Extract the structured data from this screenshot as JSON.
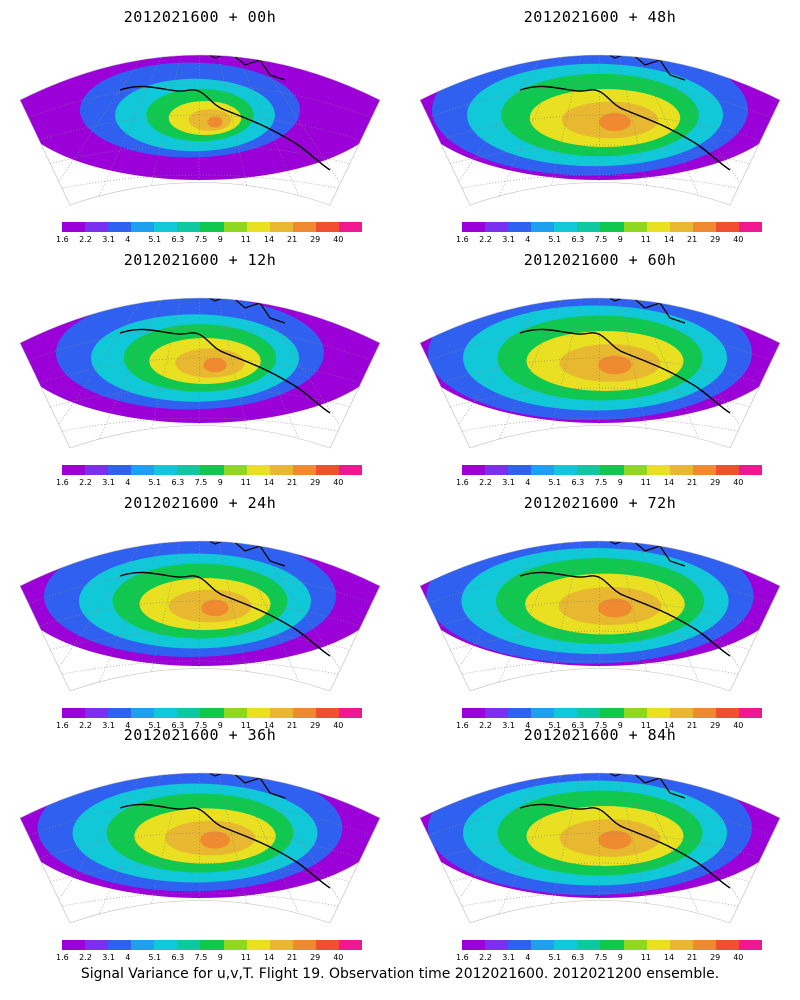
{
  "panels": [
    {
      "title": "2012021600 + 00h",
      "lead_hours": 0,
      "intensity": 0.25
    },
    {
      "title": "2012021600 + 48h",
      "lead_hours": 48,
      "intensity": 0.85
    },
    {
      "title": "2012021600 + 12h",
      "lead_hours": 12,
      "intensity": 0.55
    },
    {
      "title": "2012021600 + 60h",
      "lead_hours": 60,
      "intensity": 0.9
    },
    {
      "title": "2012021600 + 24h",
      "lead_hours": 24,
      "intensity": 0.7
    },
    {
      "title": "2012021600 + 72h",
      "lead_hours": 72,
      "intensity": 0.92
    },
    {
      "title": "2012021600 + 36h",
      "lead_hours": 36,
      "intensity": 0.78
    },
    {
      "title": "2012021600 + 84h",
      "lead_hours": 84,
      "intensity": 0.9
    }
  ],
  "legend": {
    "tick_labels": [
      "1.6",
      "2.2",
      "3.1",
      "4",
      "5.1",
      "6.3",
      "7.5",
      "9",
      "11",
      "14",
      "21",
      "29",
      "40"
    ],
    "colors": [
      "#9b00d8",
      "#7b2ff0",
      "#3060f0",
      "#1ea0f0",
      "#10c8d8",
      "#10c8a0",
      "#10c850",
      "#90d820",
      "#e8e020",
      "#e8b830",
      "#f08a30",
      "#f05030",
      "#f01890"
    ]
  },
  "caption": "Signal Variance for u,v,T. Flight 19. Observation time 2012021600. 2012021200 ensemble."
}
